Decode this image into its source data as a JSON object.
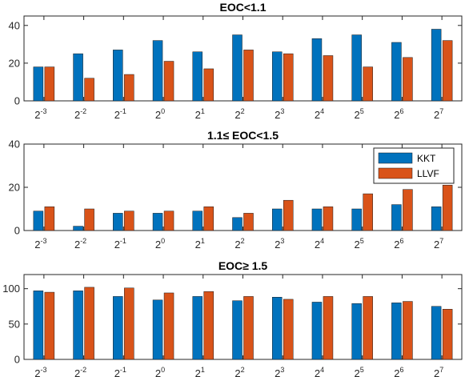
{
  "colors": {
    "kkt": "#0072BD",
    "llvf": "#D95319",
    "axis": "#262626"
  },
  "legend": {
    "placement": "top-right",
    "panel": 1,
    "items": [
      "KKT",
      "LLVF"
    ]
  },
  "chart_data": [
    {
      "type": "bar",
      "title": "EOC<1.1",
      "categories": [
        "2^-3",
        "2^-2",
        "2^-1",
        "2^0",
        "2^1",
        "2^2",
        "2^3",
        "2^4",
        "2^5",
        "2^6",
        "2^7"
      ],
      "x_tick_labels": [
        {
          "base": "2",
          "exp": "-3"
        },
        {
          "base": "2",
          "exp": "-2"
        },
        {
          "base": "2",
          "exp": "-1"
        },
        {
          "base": "2",
          "exp": "0"
        },
        {
          "base": "2",
          "exp": "1"
        },
        {
          "base": "2",
          "exp": "2"
        },
        {
          "base": "2",
          "exp": "3"
        },
        {
          "base": "2",
          "exp": "4"
        },
        {
          "base": "2",
          "exp": "5"
        },
        {
          "base": "2",
          "exp": "6"
        },
        {
          "base": "2",
          "exp": "7"
        }
      ],
      "series": [
        {
          "name": "KKT",
          "values": [
            18,
            25,
            27,
            32,
            26,
            35,
            26,
            33,
            35,
            31,
            38
          ]
        },
        {
          "name": "LLVF",
          "values": [
            18,
            12,
            14,
            21,
            17,
            27,
            25,
            24,
            18,
            23,
            32
          ]
        }
      ],
      "ylim": [
        0,
        45
      ],
      "yticks": [
        0,
        20,
        40
      ],
      "xlabel": "",
      "ylabel": "",
      "grid": false
    },
    {
      "type": "bar",
      "title": "1.1≤ EOC<1.5",
      "categories": [
        "2^-3",
        "2^-2",
        "2^-1",
        "2^0",
        "2^1",
        "2^2",
        "2^3",
        "2^4",
        "2^5",
        "2^6",
        "2^7"
      ],
      "x_tick_labels": [
        {
          "base": "2",
          "exp": "-3"
        },
        {
          "base": "2",
          "exp": "-2"
        },
        {
          "base": "2",
          "exp": "-1"
        },
        {
          "base": "2",
          "exp": "0"
        },
        {
          "base": "2",
          "exp": "1"
        },
        {
          "base": "2",
          "exp": "2"
        },
        {
          "base": "2",
          "exp": "3"
        },
        {
          "base": "2",
          "exp": "4"
        },
        {
          "base": "2",
          "exp": "5"
        },
        {
          "base": "2",
          "exp": "6"
        },
        {
          "base": "2",
          "exp": "7"
        }
      ],
      "series": [
        {
          "name": "KKT",
          "values": [
            9,
            2,
            8,
            8,
            9,
            6,
            10,
            10,
            10,
            12,
            11
          ]
        },
        {
          "name": "LLVF",
          "values": [
            11,
            10,
            9,
            9,
            11,
            8,
            14,
            11,
            17,
            19,
            21
          ]
        }
      ],
      "ylim": [
        0,
        40
      ],
      "yticks": [
        0,
        20,
        40
      ],
      "xlabel": "",
      "ylabel": "",
      "grid": false
    },
    {
      "type": "bar",
      "title": "EOC≥ 1.5",
      "categories": [
        "2^-3",
        "2^-2",
        "2^-1",
        "2^0",
        "2^1",
        "2^2",
        "2^3",
        "2^4",
        "2^5",
        "2^6",
        "2^7"
      ],
      "x_tick_labels": [
        {
          "base": "2",
          "exp": "-3"
        },
        {
          "base": "2",
          "exp": "-2"
        },
        {
          "base": "2",
          "exp": "-1"
        },
        {
          "base": "2",
          "exp": "0"
        },
        {
          "base": "2",
          "exp": "1"
        },
        {
          "base": "2",
          "exp": "2"
        },
        {
          "base": "2",
          "exp": "3"
        },
        {
          "base": "2",
          "exp": "4"
        },
        {
          "base": "2",
          "exp": "5"
        },
        {
          "base": "2",
          "exp": "6"
        },
        {
          "base": "2",
          "exp": "7"
        }
      ],
      "series": [
        {
          "name": "KKT",
          "values": [
            97,
            97,
            89,
            84,
            89,
            83,
            88,
            81,
            79,
            80,
            75
          ]
        },
        {
          "name": "LLVF",
          "values": [
            95,
            102,
            101,
            94,
            96,
            89,
            85,
            89,
            89,
            82,
            71
          ]
        }
      ],
      "ylim": [
        0,
        120
      ],
      "yticks": [
        0,
        50,
        100
      ],
      "xlabel": "",
      "ylabel": "",
      "grid": false
    }
  ]
}
